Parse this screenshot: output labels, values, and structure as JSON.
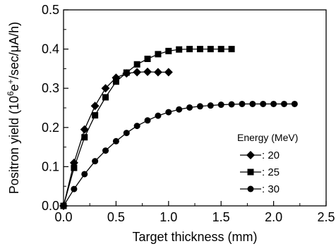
{
  "chart_data": {
    "type": "line",
    "xlabel": "Target thickness (mm)",
    "ylabel_parts": {
      "pre": "Positron yield (10",
      "sup1": "6",
      "mid": "e",
      "sup2": "+",
      "post": "/sec/μA/h)"
    },
    "xlim": [
      0.0,
      2.5
    ],
    "ylim": [
      0.0,
      0.5
    ],
    "x_ticks": [
      "0.0",
      "0.5",
      "1.0",
      "1.5",
      "2.0",
      "2.5"
    ],
    "y_ticks": [
      "0.0",
      "0.1",
      "0.2",
      "0.3",
      "0.4",
      "0.5"
    ],
    "grid": false,
    "legend": {
      "title": "Energy (MeV)",
      "placement": "lower-right"
    },
    "series": [
      {
        "name": ": 20",
        "marker": "diamond",
        "x": [
          0.0,
          0.1,
          0.2,
          0.3,
          0.4,
          0.5,
          0.6,
          0.7,
          0.8,
          0.9,
          1.0
        ],
        "y": [
          0.0,
          0.11,
          0.195,
          0.255,
          0.3,
          0.327,
          0.338,
          0.341,
          0.342,
          0.341,
          0.341
        ]
      },
      {
        "name": ": 25",
        "marker": "square",
        "x": [
          0.0,
          0.1,
          0.2,
          0.3,
          0.4,
          0.5,
          0.6,
          0.7,
          0.8,
          0.9,
          1.0,
          1.1,
          1.2,
          1.3,
          1.4,
          1.5,
          1.6
        ],
        "y": [
          0.0,
          0.097,
          0.175,
          0.231,
          0.277,
          0.317,
          0.34,
          0.361,
          0.375,
          0.387,
          0.395,
          0.399,
          0.4,
          0.4,
          0.4,
          0.4,
          0.4
        ]
      },
      {
        "name": ": 30",
        "marker": "circle",
        "x": [
          0.0,
          0.1,
          0.2,
          0.3,
          0.4,
          0.5,
          0.6,
          0.7,
          0.8,
          0.9,
          1.0,
          1.1,
          1.2,
          1.3,
          1.4,
          1.5,
          1.6,
          1.7,
          1.8,
          1.9,
          2.0,
          2.1,
          2.2
        ],
        "y": [
          0.0,
          0.043,
          0.081,
          0.114,
          0.141,
          0.165,
          0.186,
          0.204,
          0.218,
          0.23,
          0.239,
          0.246,
          0.251,
          0.254,
          0.256,
          0.258,
          0.259,
          0.26,
          0.26,
          0.26,
          0.26,
          0.26,
          0.26
        ]
      }
    ]
  }
}
